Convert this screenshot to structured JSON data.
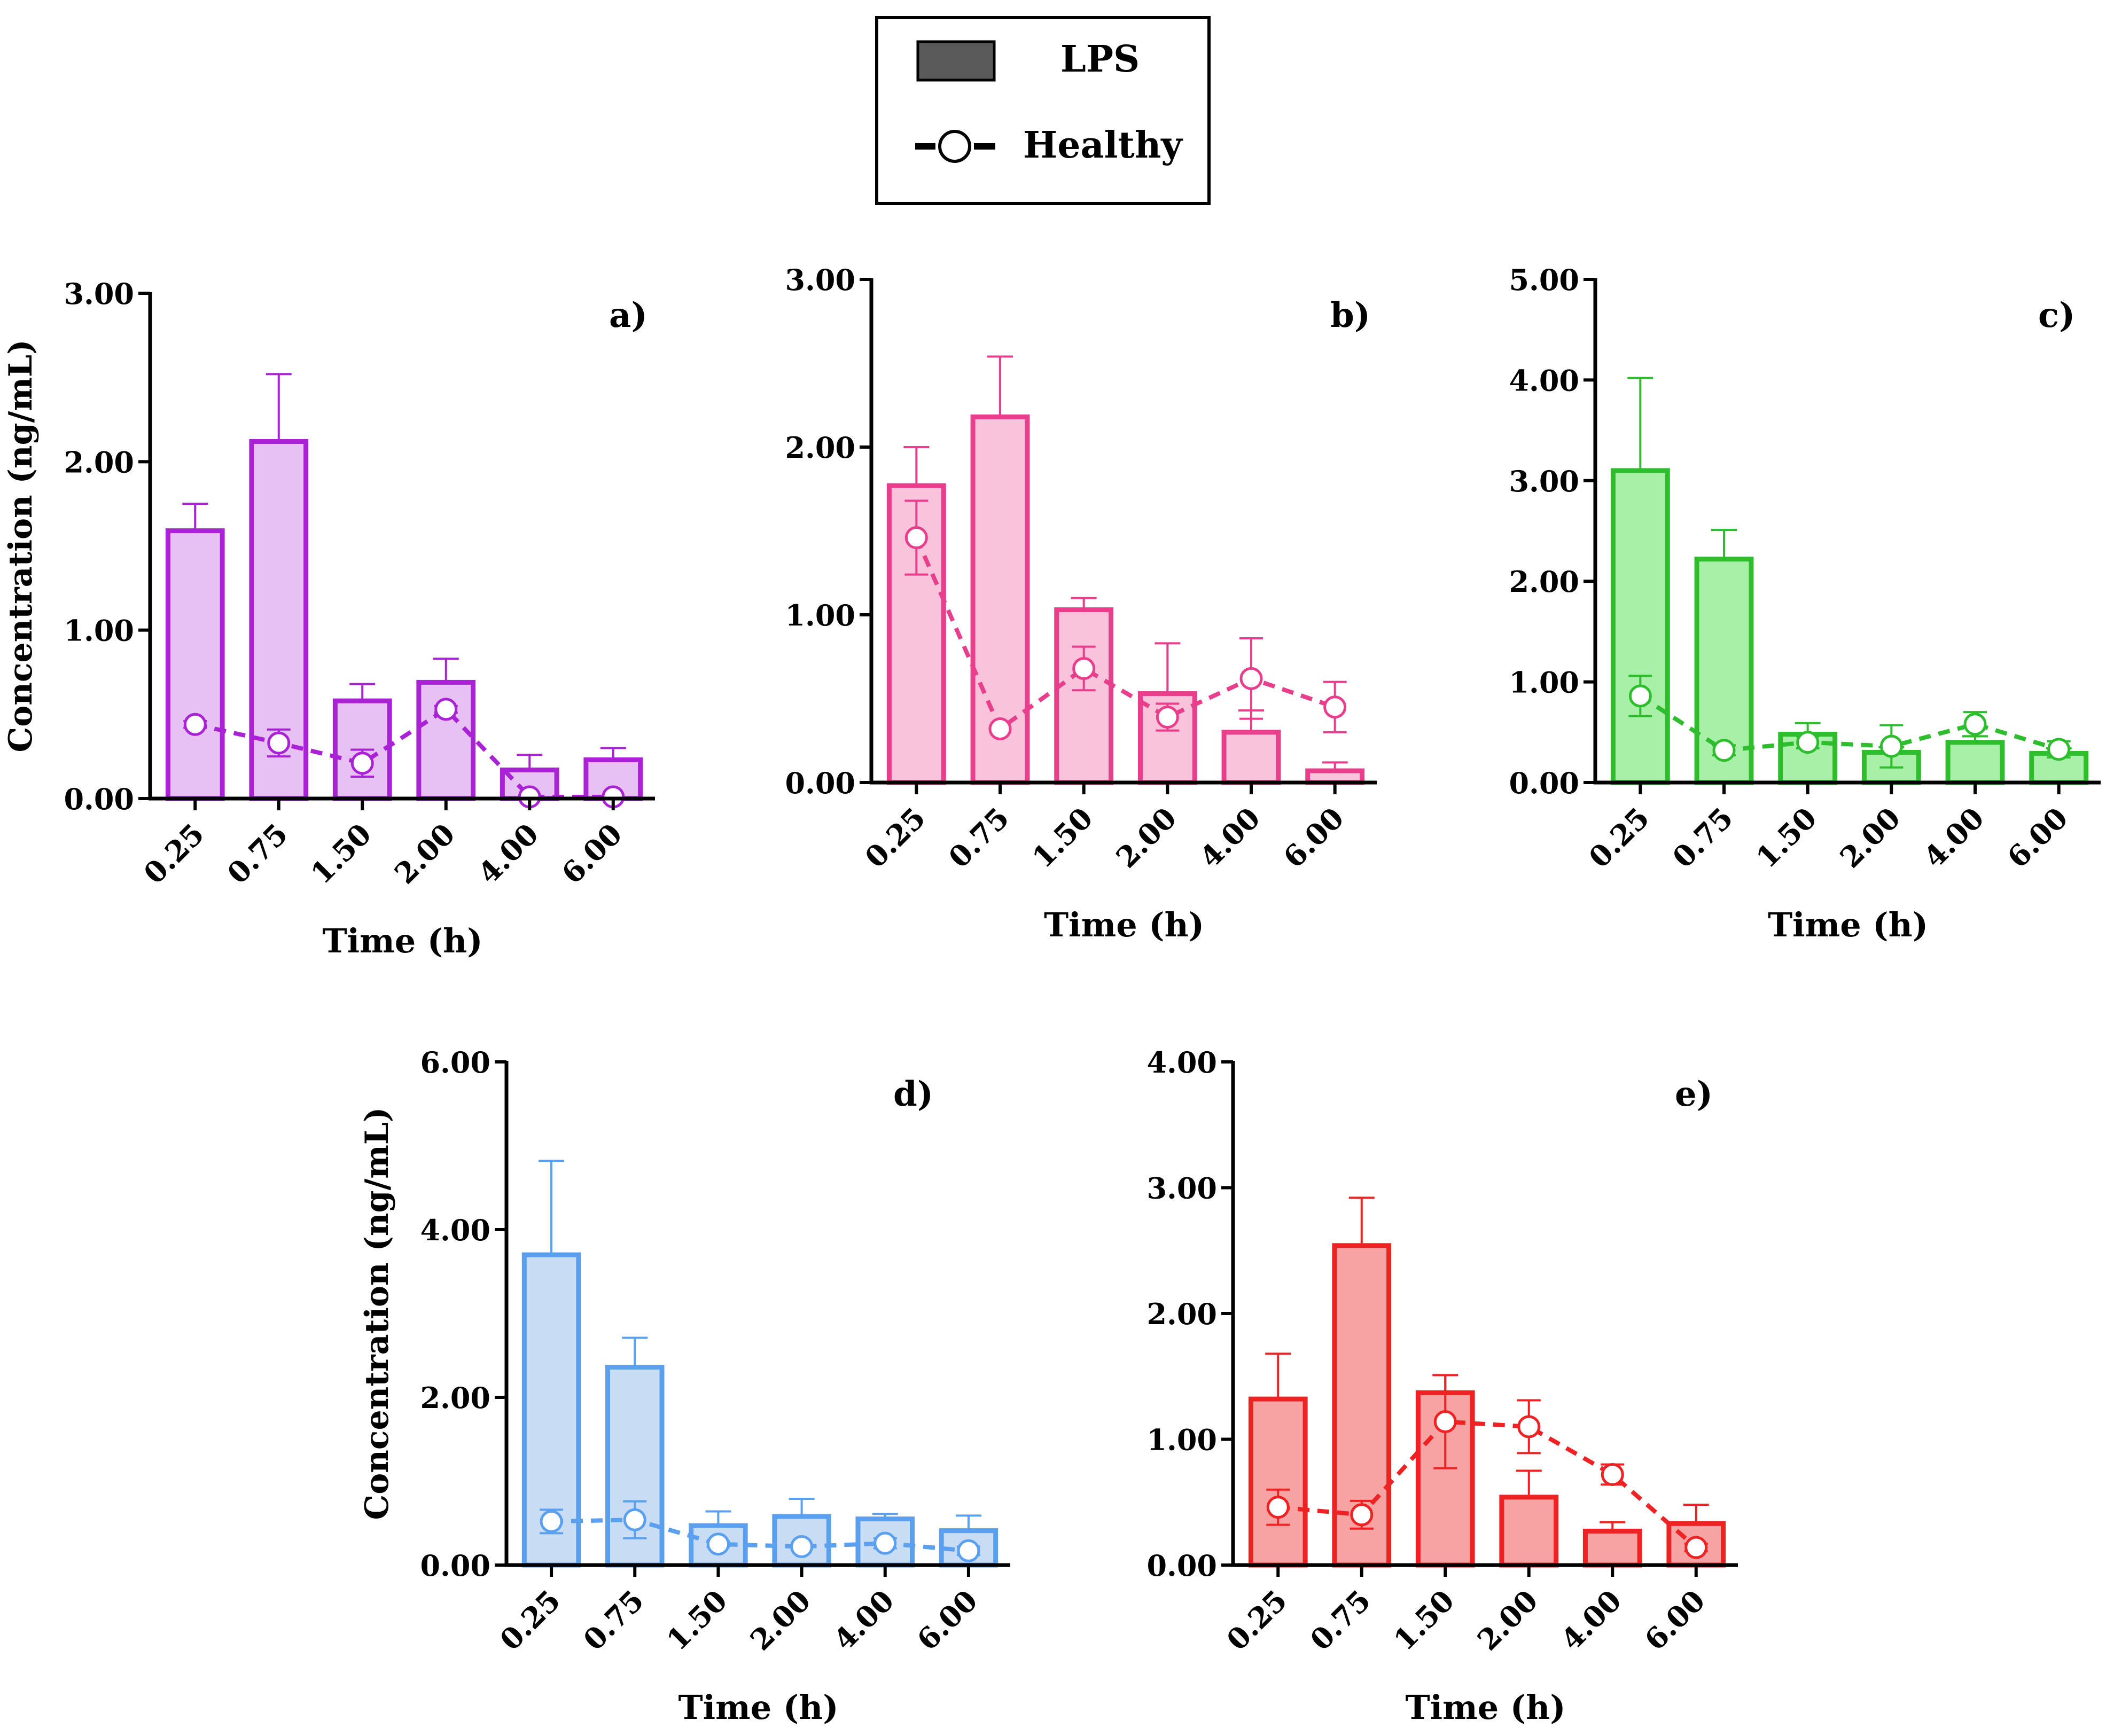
{
  "legend": {
    "bar_label": "LPS",
    "line_label": "Healthy",
    "bar_swatch_color": "#5a5a5a"
  },
  "chart_data": [
    {
      "id": "a",
      "type": "bar",
      "panel_label": "a)",
      "title": "",
      "xlabel": "Time (h)",
      "ylabel": "Concentration (ng/mL)",
      "ylim": [
        0,
        3
      ],
      "yticks": [
        "0.00",
        "1.00",
        "2.00",
        "3.00"
      ],
      "categories": [
        "0.25",
        "0.75",
        "1.50",
        "2.00",
        "4.00",
        "6.00"
      ],
      "color": "#a922d6",
      "fill": "#e7c1f3",
      "series": [
        {
          "name": "LPS",
          "type": "bar",
          "values": [
            1.59,
            2.12,
            0.58,
            0.69,
            0.17,
            0.23
          ],
          "err": [
            0.16,
            0.4,
            0.1,
            0.14,
            0.09,
            0.07
          ]
        },
        {
          "name": "Healthy",
          "type": "line",
          "values": [
            0.44,
            0.33,
            0.21,
            0.53,
            0.01,
            0.01
          ],
          "err": [
            0.02,
            0.08,
            0.08,
            0.02,
            0.0,
            0.0
          ]
        }
      ]
    },
    {
      "id": "b",
      "type": "bar",
      "panel_label": "b)",
      "title": "",
      "xlabel": "Time (h)",
      "ylabel": "",
      "ylim": [
        0,
        3
      ],
      "yticks": [
        "0.00",
        "1.00",
        "2.00",
        "3.00"
      ],
      "categories": [
        "0.25",
        "0.75",
        "1.50",
        "2.00",
        "4.00",
        "6.00"
      ],
      "color": "#e83e8c",
      "fill": "#f9c3dc",
      "series": [
        {
          "name": "LPS",
          "type": "bar",
          "values": [
            1.77,
            2.18,
            1.03,
            0.53,
            0.3,
            0.07
          ],
          "err": [
            0.23,
            0.36,
            0.07,
            0.3,
            0.13,
            0.05
          ]
        },
        {
          "name": "Healthy",
          "type": "line",
          "values": [
            1.46,
            0.32,
            0.68,
            0.39,
            0.62,
            0.45
          ],
          "err": [
            0.22,
            0.0,
            0.13,
            0.08,
            0.24,
            0.15
          ]
        }
      ]
    },
    {
      "id": "c",
      "type": "bar",
      "panel_label": "c)",
      "title": "",
      "xlabel": "Time (h)",
      "ylabel": "",
      "ylim": [
        0,
        5
      ],
      "yticks": [
        "0.00",
        "1.00",
        "2.00",
        "3.00",
        "4.00",
        "5.00"
      ],
      "categories": [
        "0.25",
        "0.75",
        "1.50",
        "2.00",
        "4.00",
        "6.00"
      ],
      "color": "#2dbd2d",
      "fill": "#a8f0a8",
      "series": [
        {
          "name": "LPS",
          "type": "bar",
          "values": [
            3.1,
            2.22,
            0.48,
            0.3,
            0.4,
            0.29
          ],
          "err": [
            0.92,
            0.29,
            0.11,
            0.05,
            0.06,
            0.05
          ]
        },
        {
          "name": "Healthy",
          "type": "line",
          "values": [
            0.86,
            0.32,
            0.4,
            0.36,
            0.58,
            0.33
          ],
          "err": [
            0.2,
            0.05,
            0.06,
            0.21,
            0.12,
            0.08
          ]
        }
      ]
    },
    {
      "id": "d",
      "type": "bar",
      "panel_label": "d)",
      "title": "",
      "xlabel": "Time (h)",
      "ylabel": "Concentration (ng/mL)",
      "ylim": [
        0,
        6
      ],
      "yticks": [
        "0.00",
        "2.00",
        "4.00",
        "6.00"
      ],
      "categories": [
        "0.25",
        "0.75",
        "1.50",
        "2.00",
        "4.00",
        "6.00"
      ],
      "color": "#5aa0ee",
      "fill": "#c8dcf4",
      "series": [
        {
          "name": "LPS",
          "type": "bar",
          "values": [
            3.7,
            2.36,
            0.47,
            0.58,
            0.55,
            0.41
          ],
          "err": [
            1.12,
            0.35,
            0.17,
            0.21,
            0.06,
            0.18
          ]
        },
        {
          "name": "Healthy",
          "type": "line",
          "values": [
            0.52,
            0.54,
            0.25,
            0.22,
            0.26,
            0.17
          ],
          "err": [
            0.14,
            0.22,
            0.03,
            0.0,
            0.06,
            0.05
          ]
        }
      ]
    },
    {
      "id": "e",
      "type": "bar",
      "panel_label": "e)",
      "title": "",
      "xlabel": "Time (h)",
      "ylabel": "",
      "ylim": [
        0,
        4
      ],
      "yticks": [
        "0.00",
        "1.00",
        "2.00",
        "3.00",
        "4.00"
      ],
      "categories": [
        "0.25",
        "0.75",
        "1.50",
        "2.00",
        "4.00",
        "6.00"
      ],
      "color": "#ee2222",
      "fill": "#f8a3a3",
      "series": [
        {
          "name": "LPS",
          "type": "bar",
          "values": [
            1.32,
            2.54,
            1.37,
            0.54,
            0.27,
            0.33
          ],
          "err": [
            0.36,
            0.38,
            0.14,
            0.21,
            0.07,
            0.15
          ]
        },
        {
          "name": "Healthy",
          "type": "line",
          "values": [
            0.46,
            0.4,
            1.14,
            1.1,
            0.72,
            0.14
          ],
          "err": [
            0.14,
            0.11,
            0.37,
            0.21,
            0.08,
            0.03
          ]
        }
      ]
    }
  ]
}
